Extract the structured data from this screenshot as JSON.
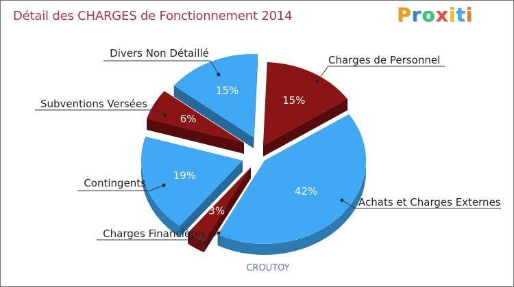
{
  "chart_data": {
    "type": "pie",
    "title": "Détail des CHARGES de Fonctionnement 2014",
    "subtitle": "CROUTOY",
    "slices": [
      {
        "label": "Charges de Personnel",
        "pct_label": "15%",
        "value": 15,
        "color": "#8b1414",
        "text_color": "#ffffff"
      },
      {
        "label": "Achats et Charges Externes",
        "pct_label": "42%",
        "value": 42,
        "color": "#3fa9f5",
        "text_color": "#ffffff"
      },
      {
        "label": "Charges Financières",
        "pct_label": "3%",
        "value": 3,
        "color": "#8b1414",
        "text_color": "#ffffff"
      },
      {
        "label": "Contingents",
        "pct_label": "19%",
        "value": 19,
        "color": "#3fa9f5",
        "text_color": "#ffffff"
      },
      {
        "label": "Subventions Versées",
        "pct_label": "6%",
        "value": 6,
        "color": "#8b1414",
        "text_color": "#ffffff"
      },
      {
        "label": "Divers Non Détaillé",
        "pct_label": "15%",
        "value": 15,
        "color": "#3fa9f5",
        "text_color": "#ffffff"
      }
    ]
  },
  "logo": {
    "letters": [
      "P",
      "r",
      "o",
      "x",
      "i",
      "t",
      "i"
    ],
    "colors": [
      "#f39c12",
      "#2e86de",
      "#2ecc71",
      "#e74c3c",
      "#f1c40f",
      "#3fa9f5",
      "#e67e22"
    ]
  }
}
